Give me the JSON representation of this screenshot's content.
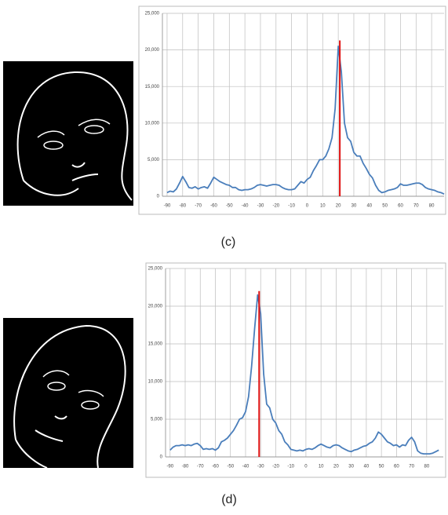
{
  "chart_data": [
    {
      "type": "line",
      "color": "#4a7ebb",
      "x": [
        -90,
        -88,
        -86,
        -84,
        -82,
        -80,
        -78,
        -76,
        -74,
        -72,
        -70,
        -68,
        -66,
        -64,
        -62,
        -60,
        -58,
        -56,
        -54,
        -52,
        -50,
        -48,
        -46,
        -44,
        -42,
        -40,
        -38,
        -36,
        -34,
        -32,
        -30,
        -28,
        -26,
        -24,
        -22,
        -20,
        -18,
        -16,
        -14,
        -12,
        -10,
        -8,
        -6,
        -4,
        -2,
        0,
        2,
        4,
        6,
        8,
        10,
        12,
        14,
        16,
        18,
        20,
        22,
        24,
        26,
        28,
        30,
        32,
        34,
        36,
        38,
        40,
        42,
        44,
        46,
        48,
        50,
        52,
        54,
        56,
        58,
        60,
        62,
        64,
        66,
        68,
        70,
        72,
        74,
        76,
        78,
        80,
        82,
        84,
        86,
        88
      ],
      "values": [
        500,
        700,
        600,
        1000,
        1800,
        2700,
        2000,
        1200,
        1100,
        1300,
        1000,
        1200,
        1300,
        1100,
        1800,
        2600,
        2300,
        2000,
        1800,
        1600,
        1500,
        1200,
        1200,
        900,
        800,
        900,
        900,
        1000,
        1200,
        1500,
        1600,
        1500,
        1400,
        1500,
        1600,
        1600,
        1500,
        1200,
        1000,
        900,
        900,
        1000,
        1500,
        2000,
        1800,
        2300,
        2600,
        3500,
        4200,
        5000,
        5000,
        5500,
        6500,
        8000,
        12000,
        20500,
        17000,
        10000,
        8000,
        7500,
        6000,
        5500,
        5500,
        4500,
        3800,
        3000,
        2500,
        1500,
        800,
        500,
        600,
        800,
        900,
        1000,
        1200,
        1700,
        1500,
        1500,
        1600,
        1700,
        1800,
        1800,
        1600,
        1200,
        1000,
        900,
        800,
        600,
        500,
        300
      ],
      "marker_x": 21,
      "marker_value": 21300,
      "marker_color": "#e01010",
      "xlim": [
        -93,
        88
      ],
      "xticks": [
        -90,
        -80,
        -70,
        -60,
        -50,
        -40,
        -30,
        -20,
        -10,
        0,
        10,
        20,
        30,
        40,
        50,
        60,
        70,
        80
      ],
      "ylim": [
        0,
        25000
      ],
      "yticks": [
        0,
        {
          "value": 5000,
          "label": "5,000"
        },
        {
          "value": 10000,
          "label": "10,000"
        },
        {
          "value": 15000,
          "label": "15,000"
        },
        {
          "value": 20000,
          "label": "20,000"
        },
        {
          "value": 25000,
          "label": "25,000"
        }
      ],
      "grid": true
    },
    {
      "type": "line",
      "color": "#4a7ebb",
      "x": [
        -90,
        -88,
        -86,
        -84,
        -82,
        -80,
        -78,
        -76,
        -74,
        -72,
        -70,
        -68,
        -66,
        -64,
        -62,
        -60,
        -58,
        -56,
        -54,
        -52,
        -50,
        -48,
        -46,
        -44,
        -42,
        -40,
        -38,
        -36,
        -34,
        -32,
        -30,
        -28,
        -26,
        -24,
        -22,
        -20,
        -18,
        -16,
        -14,
        -12,
        -10,
        -8,
        -6,
        -4,
        -2,
        0,
        2,
        4,
        6,
        8,
        10,
        12,
        14,
        16,
        18,
        20,
        22,
        24,
        26,
        28,
        30,
        32,
        34,
        36,
        38,
        40,
        42,
        44,
        46,
        48,
        50,
        52,
        54,
        56,
        58,
        60,
        62,
        64,
        66,
        68,
        70,
        72,
        74,
        76,
        78,
        80,
        82,
        84,
        86,
        88
      ],
      "values": [
        900,
        1300,
        1500,
        1500,
        1600,
        1500,
        1600,
        1500,
        1700,
        1800,
        1500,
        1000,
        1100,
        1000,
        1100,
        900,
        1200,
        2000,
        2200,
        2500,
        3000,
        3500,
        4200,
        5000,
        5200,
        6000,
        8000,
        12000,
        17000,
        21500,
        19000,
        11000,
        7000,
        6500,
        5000,
        4500,
        3500,
        3000,
        2000,
        1600,
        1000,
        900,
        800,
        900,
        800,
        1000,
        1100,
        1000,
        1200,
        1500,
        1700,
        1500,
        1300,
        1200,
        1500,
        1600,
        1500,
        1200,
        1000,
        800,
        700,
        900,
        1000,
        1200,
        1400,
        1500,
        1800,
        2000,
        2500,
        3300,
        3000,
        2500,
        2000,
        1800,
        1500,
        1600,
        1300,
        1600,
        1500,
        2200,
        2600,
        2000,
        800,
        500,
        400,
        400,
        400,
        500,
        700,
        900
      ],
      "marker_x": -31,
      "marker_value": 22000,
      "marker_color": "#e01010",
      "xlim": [
        -93,
        91
      ],
      "xticks": [
        -90,
        -80,
        -70,
        -60,
        -50,
        -40,
        -30,
        -20,
        -10,
        0,
        10,
        20,
        30,
        40,
        50,
        60,
        70,
        80
      ],
      "ylim": [
        0,
        25000
      ],
      "yticks": [
        0,
        {
          "value": 5000,
          "label": "5,000"
        },
        {
          "value": 10000,
          "label": "10,000"
        },
        {
          "value": 15000,
          "label": "15,000"
        },
        {
          "value": 20000,
          "label": "20,000"
        },
        {
          "value": 25000,
          "label": "25,000"
        }
      ],
      "grid": true
    }
  ],
  "captions": [
    "(c)",
    "(d)"
  ]
}
